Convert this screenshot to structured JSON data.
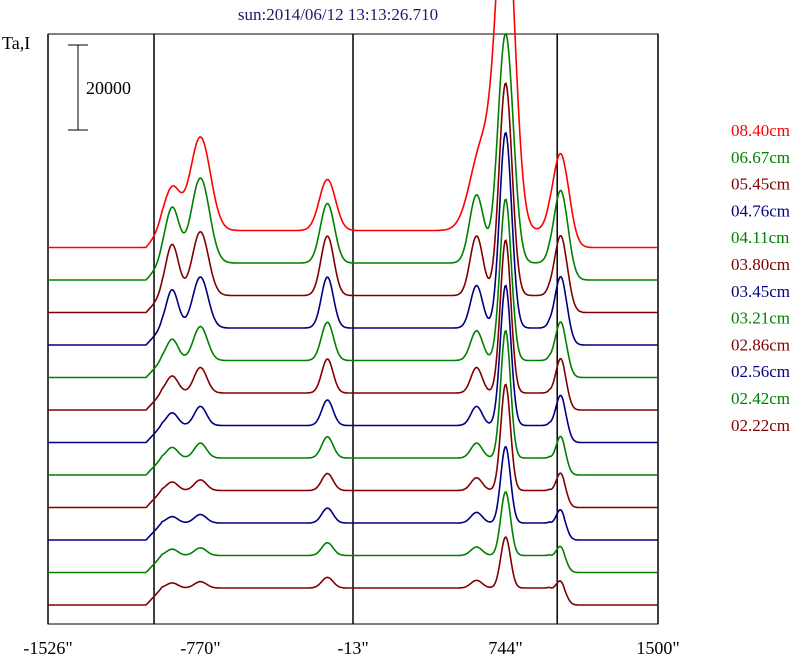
{
  "chart_data": {
    "type": "line",
    "title": "sun:2014/06/12 13:13:26.710",
    "ylabel": "Ta,I",
    "scale_bar_label": "20000",
    "x_ticks": [
      "-1526\"",
      "-770\"",
      "-13\"",
      "744\"",
      "1500\""
    ],
    "x_tick_values": [
      -1526,
      -770,
      -13,
      744,
      1500
    ],
    "xlim": [
      -1526,
      1500
    ],
    "vertical_lines": [
      -1526,
      -1000,
      -13,
      1000,
      1500
    ],
    "offset_step": 20000,
    "series": [
      {
        "name": "08.40cm",
        "color": "#ff0000",
        "peaks": [
          [
            -910,
            10000,
            40
          ],
          [
            -770,
            22000,
            50
          ],
          [
            -140,
            12000,
            40
          ],
          [
            630,
            20000,
            60
          ],
          [
            744,
            78000,
            45
          ],
          [
            1020,
            21000,
            40
          ]
        ]
      },
      {
        "name": "06.67cm",
        "color": "#008000",
        "peaks": [
          [
            -910,
            13000,
            35
          ],
          [
            -770,
            20000,
            45
          ],
          [
            -140,
            14000,
            35
          ],
          [
            600,
            16000,
            35
          ],
          [
            744,
            54000,
            38
          ],
          [
            1020,
            20000,
            35
          ]
        ]
      },
      {
        "name": "05.45cm",
        "color": "#800000",
        "peaks": [
          [
            -910,
            12000,
            32
          ],
          [
            -770,
            15000,
            40
          ],
          [
            -140,
            14000,
            32
          ],
          [
            600,
            14000,
            32
          ],
          [
            744,
            50000,
            32
          ],
          [
            1020,
            17000,
            32
          ]
        ]
      },
      {
        "name": "04.76cm",
        "color": "#000080",
        "peaks": [
          [
            -910,
            9000,
            30
          ],
          [
            -770,
            12000,
            38
          ],
          [
            -140,
            12000,
            30
          ],
          [
            600,
            10000,
            30
          ],
          [
            744,
            46000,
            30
          ],
          [
            1020,
            15000,
            30
          ]
        ]
      },
      {
        "name": "04.11cm",
        "color": "#008000",
        "peaks": [
          [
            -910,
            5000,
            30
          ],
          [
            -770,
            8000,
            35
          ],
          [
            -140,
            9000,
            30
          ],
          [
            600,
            7000,
            30
          ],
          [
            744,
            38000,
            28
          ],
          [
            1020,
            12000,
            28
          ]
        ]
      },
      {
        "name": "03.80cm",
        "color": "#800000",
        "peaks": [
          [
            -910,
            4000,
            30
          ],
          [
            -770,
            6000,
            32
          ],
          [
            -140,
            8000,
            28
          ],
          [
            600,
            6000,
            28
          ],
          [
            744,
            36000,
            26
          ],
          [
            1020,
            11000,
            26
          ]
        ]
      },
      {
        "name": "03.45cm",
        "color": "#000080",
        "peaks": [
          [
            -910,
            3000,
            28
          ],
          [
            -770,
            4500,
            30
          ],
          [
            -140,
            6000,
            28
          ],
          [
            600,
            4500,
            28
          ],
          [
            744,
            33000,
            26
          ],
          [
            1020,
            10000,
            26
          ]
        ]
      },
      {
        "name": "03.21cm",
        "color": "#008000",
        "peaks": [
          [
            -910,
            2500,
            28
          ],
          [
            -770,
            3500,
            30
          ],
          [
            -140,
            5000,
            28
          ],
          [
            600,
            3500,
            28
          ],
          [
            744,
            30000,
            24
          ],
          [
            1020,
            8000,
            24
          ]
        ]
      },
      {
        "name": "02.86cm",
        "color": "#800000",
        "peaks": [
          [
            -910,
            2000,
            28
          ],
          [
            -770,
            2500,
            30
          ],
          [
            -140,
            4000,
            28
          ],
          [
            600,
            3000,
            28
          ],
          [
            744,
            25000,
            24
          ],
          [
            1020,
            7000,
            24
          ]
        ]
      },
      {
        "name": "02.56cm",
        "color": "#000080",
        "peaks": [
          [
            -910,
            1500,
            28
          ],
          [
            -770,
            2000,
            30
          ],
          [
            -140,
            3500,
            28
          ],
          [
            600,
            2500,
            28
          ],
          [
            744,
            18000,
            24
          ],
          [
            1020,
            6000,
            24
          ]
        ]
      },
      {
        "name": "02.42cm",
        "color": "#008000",
        "peaks": [
          [
            -910,
            1500,
            28
          ],
          [
            -770,
            1800,
            30
          ],
          [
            -140,
            3000,
            28
          ],
          [
            600,
            2000,
            28
          ],
          [
            744,
            15000,
            24
          ],
          [
            1020,
            5000,
            24
          ]
        ]
      },
      {
        "name": "02.22cm",
        "color": "#800000",
        "peaks": [
          [
            -910,
            1200,
            28
          ],
          [
            -770,
            1500,
            30
          ],
          [
            -140,
            2500,
            28
          ],
          [
            600,
            1800,
            28
          ],
          [
            744,
            12000,
            24
          ],
          [
            1020,
            4500,
            24
          ]
        ]
      }
    ]
  }
}
